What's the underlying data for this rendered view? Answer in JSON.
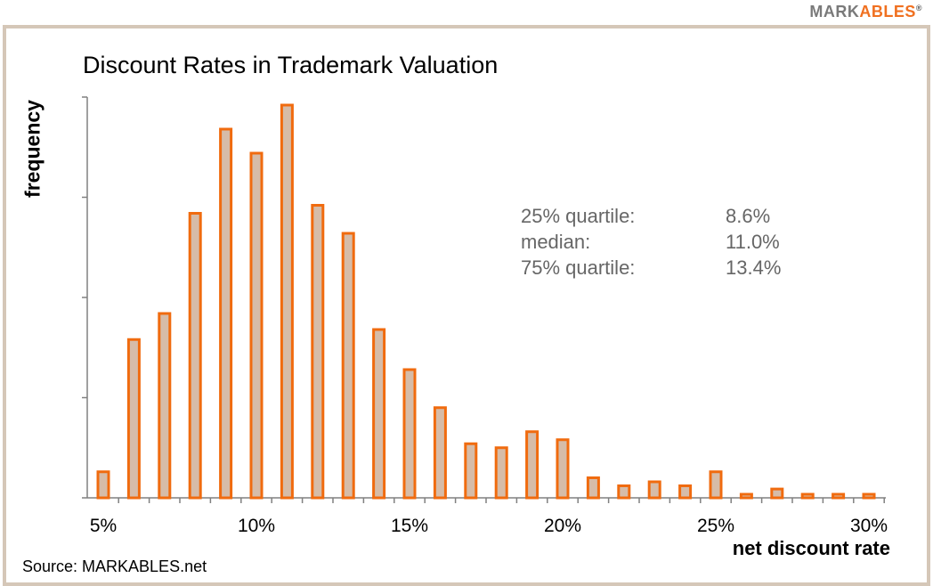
{
  "logo": {
    "part1": "MARK",
    "part2": "ABLES",
    "reg": "®"
  },
  "source": "Source: MARKABLES.net",
  "stats": [
    {
      "label": "25% quartile:",
      "value": "8.6%"
    },
    {
      "label": "median:",
      "value": "11.0%"
    },
    {
      "label": "75% quartile:",
      "value": "13.4%"
    }
  ],
  "colors": {
    "bar_fill": "#d6bca8",
    "bar_stroke": "#f06b0f",
    "frame": "#d5c7b8"
  },
  "chart_data": {
    "type": "bar",
    "title": "Discount Rates in Trademark Valuation",
    "xlabel": "net discount rate",
    "ylabel": "frequency",
    "x": [
      5,
      6,
      7,
      8,
      9,
      10,
      11,
      12,
      13,
      14,
      15,
      16,
      17,
      18,
      19,
      20,
      21,
      22,
      23,
      24,
      25,
      26,
      27,
      28,
      29,
      30
    ],
    "values": [
      6.5,
      39.5,
      46,
      71,
      92,
      86,
      98,
      73,
      66,
      42,
      32,
      22.5,
      13.5,
      12.5,
      16.5,
      14.5,
      5,
      3,
      4,
      3,
      6.5,
      0.5,
      2.2,
      0.5,
      0.5,
      0.5
    ],
    "xticks": [
      "5%",
      "10%",
      "15%",
      "20%",
      "25%",
      "30%"
    ],
    "xtick_values": [
      5,
      10,
      15,
      20,
      25,
      30
    ],
    "ylim": [
      0,
      100
    ],
    "yticks": [
      0,
      25,
      50,
      75,
      100
    ],
    "ytick_labels_shown": false,
    "grid": false,
    "legend": "none"
  }
}
